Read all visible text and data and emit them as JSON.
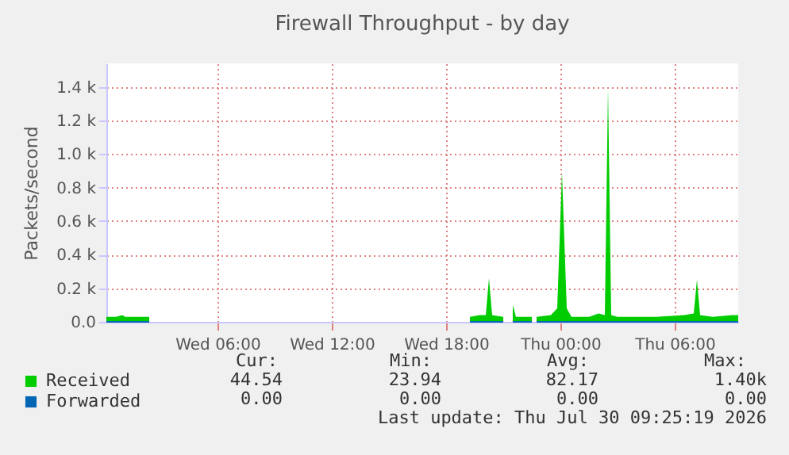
{
  "chart_data": {
    "type": "area",
    "title": "Firewall Throughput - by day",
    "ylabel": "Packets/second",
    "x": [
      "2026-07-29T00:10",
      "2026-07-29T00:40",
      "2026-07-29T01:00",
      "2026-07-29T01:10",
      "2026-07-29T01:40",
      "2026-07-29T02:00",
      "2026-07-29T02:25",
      "2026-07-29T02:30",
      "2026-07-29T19:10",
      "2026-07-29T19:15",
      "2026-07-29T19:45",
      "2026-07-29T20:05",
      "2026-07-29T20:15",
      "2026-07-29T20:25",
      "2026-07-29T21:00",
      "2026-07-29T21:05",
      "2026-07-29T21:25",
      "2026-07-29T21:30",
      "2026-07-29T21:40",
      "2026-07-29T22:30",
      "2026-07-29T22:35",
      "2026-07-29T22:40",
      "2026-07-29T22:45",
      "2026-07-29T23:30",
      "2026-07-29T23:50",
      "2026-07-30T00:05",
      "2026-07-30T00:20",
      "2026-07-30T00:35",
      "2026-07-30T01:30",
      "2026-07-30T02:00",
      "2026-07-30T02:20",
      "2026-07-30T02:30",
      "2026-07-30T02:40",
      "2026-07-30T03:00",
      "2026-07-30T05:00",
      "2026-07-30T06:30",
      "2026-07-30T07:00",
      "2026-07-30T07:10",
      "2026-07-30T07:20",
      "2026-07-30T08:00",
      "2026-07-30T09:00",
      "2026-07-30T09:20"
    ],
    "series": [
      {
        "name": "Received",
        "color": "#00cc00",
        "values": [
          30,
          30,
          40,
          30,
          30,
          30,
          30,
          null,
          null,
          30,
          40,
          40,
          260,
          40,
          30,
          null,
          null,
          100,
          30,
          30,
          null,
          null,
          30,
          40,
          80,
          890,
          80,
          30,
          30,
          50,
          40,
          1400,
          40,
          30,
          30,
          40,
          50,
          250,
          40,
          30,
          40,
          40
        ]
      },
      {
        "name": "Forwarded",
        "color": "#0066b3",
        "type": "line",
        "values": [
          0,
          0,
          0,
          0,
          0,
          0,
          0,
          null,
          null,
          0,
          0,
          0,
          0,
          0,
          0,
          null,
          null,
          0,
          0,
          0,
          null,
          null,
          0,
          0,
          0,
          0,
          0,
          0,
          0,
          0,
          0,
          0,
          0,
          0,
          0,
          0,
          0,
          0,
          0,
          0,
          0,
          0
        ]
      }
    ],
    "xlim": [
      "2026-07-29T00:10",
      "2026-07-30T09:20"
    ],
    "xticks": [
      {
        "value": "2026-07-29T06:00",
        "label": "Wed 06:00"
      },
      {
        "value": "2026-07-29T12:00",
        "label": "Wed 12:00"
      },
      {
        "value": "2026-07-29T18:00",
        "label": "Wed 18:00"
      },
      {
        "value": "2026-07-30T00:00",
        "label": "Thu 00:00"
      },
      {
        "value": "2026-07-30T06:00",
        "label": "Thu 06:00"
      }
    ],
    "ylim": [
      0,
      1540
    ],
    "yticks": [
      {
        "value": 0,
        "label": "0.0"
      },
      {
        "value": 200,
        "label": "0.2 k"
      },
      {
        "value": 400,
        "label": "0.4 k"
      },
      {
        "value": 600,
        "label": "0.6 k"
      },
      {
        "value": 800,
        "label": "0.8 k"
      },
      {
        "value": 1000,
        "label": "1.0 k"
      },
      {
        "value": 1200,
        "label": "1.2 k"
      },
      {
        "value": 1400,
        "label": "1.4 k"
      }
    ],
    "grid": true,
    "legend": "bottom left",
    "annotations": [
      "Cur:",
      "Min:",
      "Avg:",
      "Max:",
      "44.54",
      "23.94",
      "82.17",
      "1.40k",
      "0.00",
      "0.00",
      "0.00",
      "0.00",
      "Last update: Thu Jul 30 09:25:19 2026"
    ]
  }
}
